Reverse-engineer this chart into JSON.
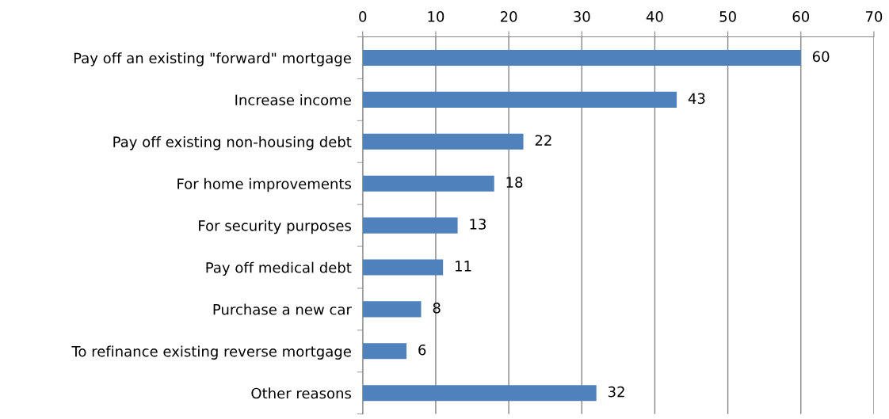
{
  "chart_data": {
    "type": "bar",
    "orientation": "horizontal",
    "categories": [
      "Pay off an existing \"forward\" mortgage",
      "Increase income",
      "Pay off existing non-housing debt",
      "For home improvements",
      "For security purposes",
      "Pay off medical debt",
      "Purchase a new car",
      "To refinance existing reverse mortgage",
      "Other reasons"
    ],
    "values": [
      60,
      43,
      22,
      18,
      13,
      11,
      8,
      6,
      32
    ],
    "color": "#4f81bd",
    "xlim": [
      0,
      70
    ],
    "xticks": [
      0,
      10,
      20,
      30,
      40,
      50,
      60,
      70
    ],
    "grid": "x",
    "data_labels": true
  }
}
